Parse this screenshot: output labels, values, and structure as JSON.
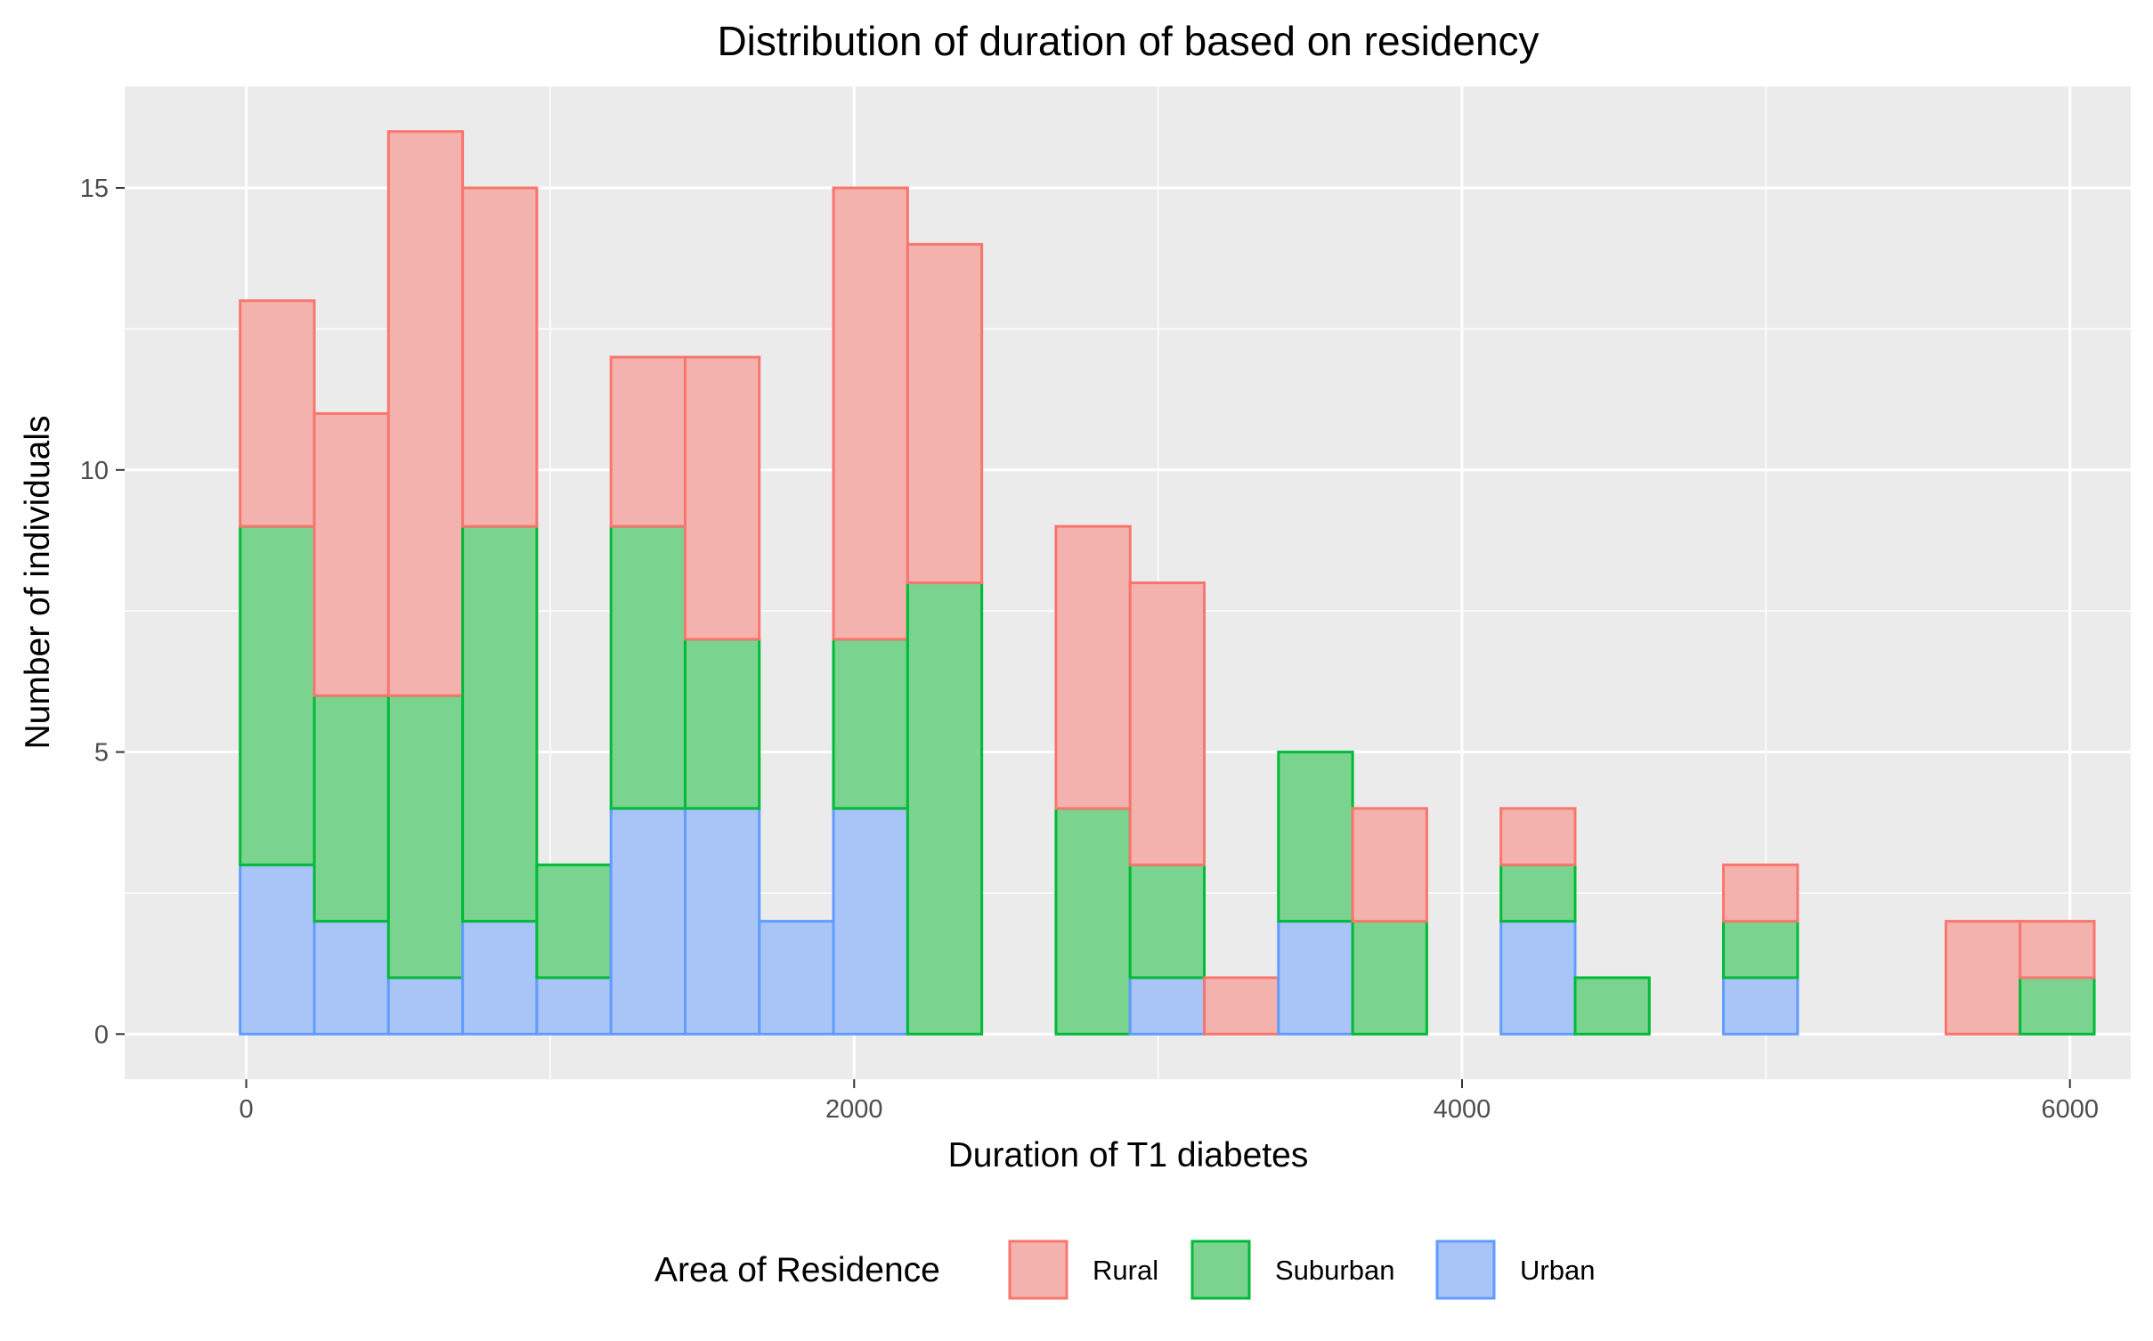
{
  "chart_data": {
    "type": "bar",
    "stacked": true,
    "title": "Distribution of duration of based on residency",
    "xlabel": "Duration of T1 diabetes",
    "ylabel": "Number of individuals",
    "bin_width": 244,
    "x": [
      -20,
      224,
      468,
      712,
      956,
      1200,
      1444,
      1688,
      1932,
      2176,
      2420,
      2664,
      2908,
      3152,
      3396,
      3640,
      3884,
      4128,
      4372,
      4616,
      4860,
      5104,
      5348,
      5592,
      5836
    ],
    "series": [
      {
        "name": "Rural",
        "color": "#F8766D",
        "values": [
          4,
          5,
          10,
          6,
          0,
          3,
          5,
          0,
          8,
          6,
          0,
          5,
          5,
          1,
          0,
          2,
          0,
          1,
          0,
          0,
          1,
          0,
          0,
          2,
          1
        ]
      },
      {
        "name": "Suburban",
        "color": "#00BA38",
        "values": [
          6,
          4,
          5,
          7,
          2,
          5,
          3,
          0,
          3,
          8,
          0,
          4,
          2,
          0,
          3,
          2,
          0,
          1,
          1,
          0,
          1,
          0,
          0,
          0,
          1
        ]
      },
      {
        "name": "Urban",
        "color": "#619CFF",
        "values": [
          3,
          2,
          1,
          2,
          1,
          4,
          4,
          2,
          4,
          0,
          0,
          0,
          1,
          0,
          2,
          0,
          0,
          2,
          0,
          0,
          1,
          0,
          0,
          0,
          0
        ]
      }
    ],
    "xlim": [
      -400,
      6200
    ],
    "ylim": [
      -0.8,
      16.8
    ],
    "xticks": [
      0,
      2000,
      4000,
      6000
    ],
    "xtick_labels": [
      "0",
      "2000",
      "4000",
      "6000"
    ],
    "yticks": [
      0,
      5,
      10,
      15
    ],
    "ytick_labels": [
      "0",
      "5",
      "10",
      "15"
    ],
    "grid": true,
    "panel_color": "#EBEBEB",
    "legend": {
      "title": "Area of Residence",
      "position": "bottom",
      "entries": [
        "Rural",
        "Suburban",
        "Urban"
      ]
    }
  }
}
